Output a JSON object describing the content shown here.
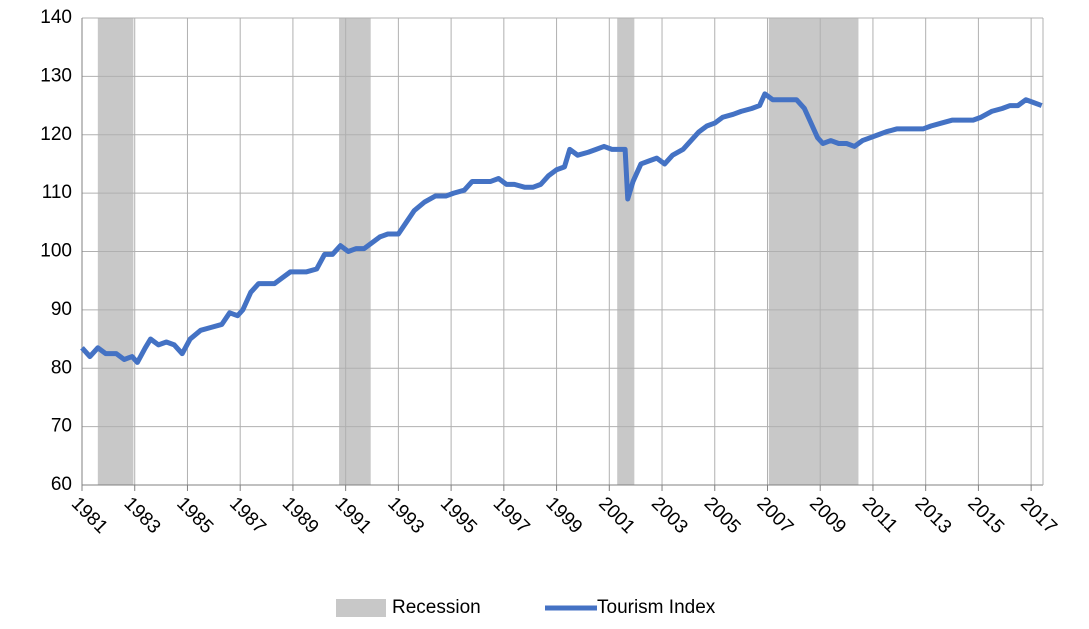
{
  "chart_data": {
    "type": "line",
    "ylim": [
      60,
      140
    ],
    "yticks": [
      60,
      70,
      80,
      90,
      100,
      110,
      120,
      130,
      140
    ],
    "xlim": [
      1981,
      2017.45
    ],
    "xticks": [
      1981,
      1983,
      1985,
      1987,
      1989,
      1991,
      1993,
      1995,
      1997,
      1999,
      2001,
      2003,
      2005,
      2007,
      2009,
      2011,
      2013,
      2015,
      2017
    ],
    "grid": true,
    "legend": "bottom",
    "recessions": {
      "name": "Recession",
      "color": "#c8c8c8",
      "periods": [
        [
          1981.6,
          1982.95
        ],
        [
          1990.75,
          1991.95
        ],
        [
          2001.3,
          2001.95
        ],
        [
          2007.05,
          2010.45
        ]
      ]
    },
    "series": [
      {
        "name": "Tourism Index",
        "color": "#4472c4",
        "x": [
          1981.0,
          1981.3,
          1981.6,
          1981.9,
          1982.3,
          1982.6,
          1982.9,
          1983.1,
          1983.4,
          1983.6,
          1983.9,
          1984.2,
          1984.5,
          1984.8,
          1985.1,
          1985.5,
          1985.9,
          1986.3,
          1986.6,
          1986.9,
          1987.1,
          1987.4,
          1987.7,
          1988.0,
          1988.3,
          1988.6,
          1988.9,
          1989.2,
          1989.5,
          1989.9,
          1990.2,
          1990.5,
          1990.8,
          1991.1,
          1991.4,
          1991.7,
          1992.0,
          1992.3,
          1992.6,
          1993.0,
          1993.3,
          1993.6,
          1994.0,
          1994.4,
          1994.8,
          1995.1,
          1995.5,
          1995.8,
          1996.2,
          1996.5,
          1996.8,
          1997.1,
          1997.4,
          1997.8,
          1998.1,
          1998.4,
          1998.7,
          1999.0,
          1999.3,
          1999.5,
          1999.8,
          2000.2,
          2000.5,
          2000.8,
          2001.1,
          2001.4,
          2001.6,
          2001.7,
          2001.9,
          2002.2,
          2002.5,
          2002.8,
          2003.1,
          2003.4,
          2003.8,
          2004.1,
          2004.4,
          2004.7,
          2005.0,
          2005.3,
          2005.7,
          2006.0,
          2006.4,
          2006.7,
          2006.9,
          2007.2,
          2007.5,
          2007.8,
          2008.1,
          2008.4,
          2008.6,
          2008.9,
          2009.1,
          2009.4,
          2009.7,
          2010.0,
          2010.3,
          2010.6,
          2010.9,
          2011.2,
          2011.5,
          2011.9,
          2012.2,
          2012.5,
          2012.9,
          2013.2,
          2013.6,
          2014.0,
          2014.4,
          2014.8,
          2015.1,
          2015.5,
          2015.9,
          2016.2,
          2016.5,
          2016.8,
          2017.1,
          2017.4
        ],
        "values": [
          83.5,
          82,
          83.5,
          82.5,
          82.5,
          81.5,
          82,
          81,
          83.5,
          85,
          84,
          84.5,
          84,
          82.5,
          85,
          86.5,
          87,
          87.5,
          89.5,
          89,
          90,
          93,
          94.5,
          94.5,
          94.5,
          95.5,
          96.5,
          96.5,
          96.5,
          97,
          99.5,
          99.5,
          101,
          100,
          100.5,
          100.5,
          101.5,
          102.5,
          103,
          103,
          105,
          107,
          108.5,
          109.5,
          109.5,
          110,
          110.5,
          112,
          112,
          112,
          112.5,
          111.5,
          111.5,
          111,
          111,
          111.5,
          113,
          114,
          114.5,
          117.5,
          116.5,
          117,
          117.5,
          118,
          117.5,
          117.5,
          117.5,
          109,
          112,
          115,
          115.5,
          116,
          115,
          116.5,
          117.5,
          119,
          120.5,
          121.5,
          122,
          123,
          123.5,
          124,
          124.5,
          125,
          127,
          126,
          126,
          126,
          126,
          124.5,
          122.5,
          119.5,
          118.5,
          119,
          118.5,
          118.5,
          118,
          119,
          119.5,
          120,
          120.5,
          121,
          121,
          121,
          121,
          121.5,
          122,
          122.5,
          122.5,
          122.5,
          123,
          124,
          124.5,
          125,
          125,
          126,
          125.5,
          125
        ]
      }
    ]
  }
}
